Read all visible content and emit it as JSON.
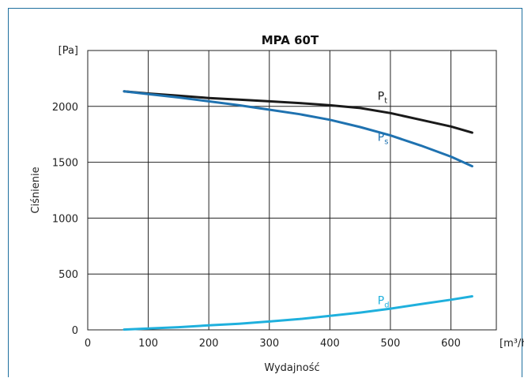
{
  "chart_data": {
    "type": "line",
    "title": "MPA 60T",
    "xlabel": "Wydajność",
    "ylabel": "Ciśnienie",
    "x_unit": "[m³/h]",
    "y_unit": "[Pa]",
    "xlim": [
      0,
      675
    ],
    "ylim": [
      0,
      2500
    ],
    "x_ticks": [
      0,
      100,
      200,
      300,
      400,
      500,
      600
    ],
    "y_ticks": [
      0,
      500,
      1000,
      1500,
      2000
    ],
    "grid": true,
    "series": [
      {
        "name": "Pt",
        "label_main": "P",
        "label_sub": "t",
        "color": "#1a1a1a",
        "x": [
          60,
          100,
          150,
          200,
          250,
          300,
          350,
          400,
          450,
          500,
          550,
          600,
          635
        ],
        "y": [
          2135,
          2115,
          2095,
          2075,
          2060,
          2045,
          2030,
          2010,
          1985,
          1940,
          1880,
          1820,
          1765
        ],
        "label_at": [
          505,
          2060
        ]
      },
      {
        "name": "Ps",
        "label_main": "P",
        "label_sub": "s",
        "color": "#1f72b0",
        "x": [
          60,
          100,
          150,
          200,
          250,
          300,
          350,
          400,
          450,
          500,
          550,
          600,
          635
        ],
        "y": [
          2135,
          2110,
          2080,
          2045,
          2010,
          1970,
          1930,
          1880,
          1815,
          1740,
          1650,
          1550,
          1465
        ],
        "label_at": [
          505,
          1690
        ]
      },
      {
        "name": "Pd",
        "label_main": "P",
        "label_sub": "d",
        "color": "#1fb0dd",
        "x": [
          60,
          100,
          150,
          200,
          250,
          300,
          350,
          400,
          450,
          500,
          550,
          600,
          635
        ],
        "y": [
          3,
          12,
          24,
          40,
          55,
          75,
          97,
          125,
          155,
          190,
          230,
          270,
          300
        ],
        "label_at": [
          505,
          230
        ]
      }
    ]
  }
}
